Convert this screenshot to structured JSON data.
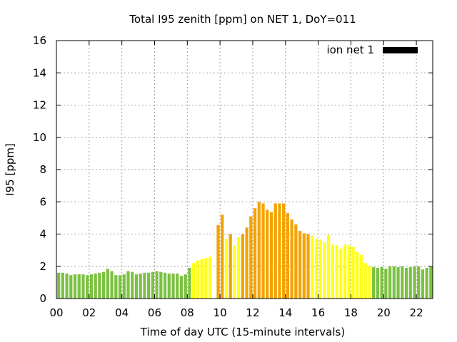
{
  "chart_data": {
    "type": "bar",
    "title": "Total I95 zenith [ppm] on NET 1, DoY=011",
    "xlabel": "Time of day UTC (15-minute intervals)",
    "ylabel": "I95 [ppm]",
    "xlim": [
      0,
      23
    ],
    "ylim": [
      0,
      16
    ],
    "x_ticks": [
      "00",
      "02",
      "04",
      "06",
      "08",
      "10",
      "12",
      "14",
      "16",
      "18",
      "20",
      "22"
    ],
    "y_ticks": [
      "0",
      "2",
      "4",
      "6",
      "8",
      "10",
      "12",
      "14",
      "16"
    ],
    "grid": true,
    "legend": {
      "position": "top-right",
      "entries": [
        {
          "name": "ion net 1",
          "color": "#000000"
        }
      ]
    },
    "colors": {
      "green": "#7cc142",
      "yellow": "#ffff1a",
      "orange": "#f4a300"
    },
    "bar_interval_hours": 0.25,
    "values": [
      1.6,
      1.6,
      1.55,
      1.45,
      1.5,
      1.5,
      1.5,
      1.45,
      1.5,
      1.55,
      1.6,
      1.65,
      1.85,
      1.7,
      1.45,
      1.45,
      1.5,
      1.7,
      1.65,
      1.5,
      1.55,
      1.6,
      1.6,
      1.65,
      1.7,
      1.65,
      1.6,
      1.55,
      1.55,
      1.55,
      1.4,
      1.5,
      1.9,
      2.2,
      2.35,
      2.45,
      2.5,
      2.6,
      0,
      4.55,
      5.2,
      3.7,
      4.0,
      3.3,
      3.8,
      4.0,
      4.4,
      5.1,
      5.6,
      6.0,
      5.9,
      5.5,
      5.35,
      5.9,
      5.9,
      5.9,
      5.3,
      4.9,
      4.6,
      4.2,
      4.05,
      4.0,
      3.9,
      3.7,
      3.65,
      3.5,
      3.95,
      3.35,
      3.3,
      3.1,
      3.35,
      3.3,
      3.2,
      2.9,
      2.7,
      2.2,
      2.0,
      1.95,
      1.9,
      1.95,
      1.85,
      2.0,
      2.0,
      1.95,
      2.0,
      1.9,
      1.95,
      2.0,
      2.0,
      1.8,
      1.9,
      1.95
    ],
    "levels": [
      "green",
      "green",
      "green",
      "green",
      "green",
      "green",
      "green",
      "green",
      "green",
      "green",
      "green",
      "green",
      "green",
      "green",
      "green",
      "green",
      "green",
      "green",
      "green",
      "green",
      "green",
      "green",
      "green",
      "green",
      "green",
      "green",
      "green",
      "green",
      "green",
      "green",
      "green",
      "green",
      "green",
      "yellow",
      "yellow",
      "yellow",
      "yellow",
      "yellow",
      "yellow",
      "orange",
      "orange",
      "yellow",
      "orange",
      "yellow",
      "yellow",
      "orange",
      "orange",
      "orange",
      "orange",
      "orange",
      "orange",
      "orange",
      "orange",
      "orange",
      "orange",
      "orange",
      "orange",
      "orange",
      "orange",
      "orange",
      "orange",
      "orange",
      "yellow",
      "yellow",
      "yellow",
      "yellow",
      "yellow",
      "yellow",
      "yellow",
      "yellow",
      "yellow",
      "yellow",
      "yellow",
      "yellow",
      "yellow",
      "yellow",
      "yellow",
      "green",
      "green",
      "green",
      "green",
      "green",
      "green",
      "green",
      "green",
      "green",
      "green",
      "green",
      "green",
      "green",
      "green",
      "green"
    ]
  }
}
